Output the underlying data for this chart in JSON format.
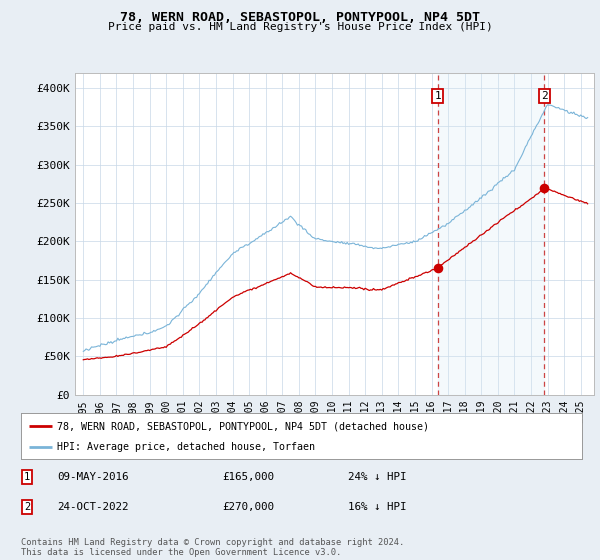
{
  "title": "78, WERN ROAD, SEBASTOPOL, PONTYPOOL, NP4 5DT",
  "subtitle": "Price paid vs. HM Land Registry's House Price Index (HPI)",
  "legend_line1": "78, WERN ROAD, SEBASTOPOL, PONTYPOOL, NP4 5DT (detached house)",
  "legend_line2": "HPI: Average price, detached house, Torfaen",
  "annotation1_label": "1",
  "annotation1_date": "09-MAY-2016",
  "annotation1_price": "£165,000",
  "annotation1_hpi": "24% ↓ HPI",
  "annotation1_year": 2016.37,
  "annotation1_value": 165000,
  "annotation2_label": "2",
  "annotation2_date": "24-OCT-2022",
  "annotation2_price": "£270,000",
  "annotation2_hpi": "16% ↓ HPI",
  "annotation2_year": 2022.81,
  "annotation2_value": 270000,
  "footer": "Contains HM Land Registry data © Crown copyright and database right 2024.\nThis data is licensed under the Open Government Licence v3.0.",
  "hpi_color": "#7ab4d8",
  "hpi_fill_color": "#d6e8f5",
  "price_color": "#cc0000",
  "background_color": "#e8eef4",
  "plot_bg_color": "#ffffff",
  "ylim": [
    0,
    420000
  ],
  "xlim_start": 1994.5,
  "xlim_end": 2025.8,
  "yticks": [
    0,
    50000,
    100000,
    150000,
    200000,
    250000,
    300000,
    350000,
    400000
  ],
  "ytick_labels": [
    "£0",
    "£50K",
    "£100K",
    "£150K",
    "£200K",
    "£250K",
    "£300K",
    "£350K",
    "£400K"
  ],
  "xticks": [
    1995,
    1996,
    1997,
    1998,
    1999,
    2000,
    2001,
    2002,
    2003,
    2004,
    2005,
    2006,
    2007,
    2008,
    2009,
    2010,
    2011,
    2012,
    2013,
    2014,
    2015,
    2016,
    2017,
    2018,
    2019,
    2020,
    2021,
    2022,
    2023,
    2024,
    2025
  ]
}
